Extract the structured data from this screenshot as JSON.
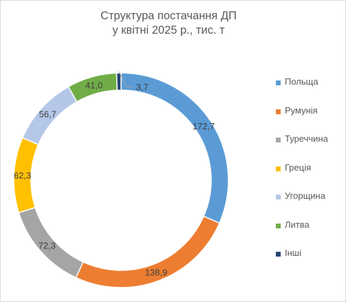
{
  "title": {
    "line1": "Структура постачання ДП",
    "line2": "у квітні 2025 р., тис. т"
  },
  "chart_data": {
    "type": "pie",
    "variant": "doughnut",
    "title": "Структура постачання ДП у квітні 2025 р., тис. т",
    "legend_position": "right",
    "start_angle_deg": 0,
    "series": [
      {
        "name": "Польща",
        "value": 172.7,
        "label": "172,7",
        "color": "#5b9bd5"
      },
      {
        "name": "Румунія",
        "value": 138.9,
        "label": "138,9",
        "color": "#ed7d31"
      },
      {
        "name": "Туреччина",
        "value": 72.3,
        "label": "72,3",
        "color": "#a5a5a5"
      },
      {
        "name": "Греція",
        "value": 62.3,
        "label": "62,3",
        "color": "#ffc000"
      },
      {
        "name": "Угорщина",
        "value": 56.7,
        "label": "56,7",
        "color": "#b4c7e7"
      },
      {
        "name": "Литва",
        "value": 41.0,
        "label": "41,0",
        "color": "#70ad47"
      },
      {
        "name": "Інші",
        "value": 3.7,
        "label": "3,7",
        "color": "#264478"
      }
    ]
  }
}
